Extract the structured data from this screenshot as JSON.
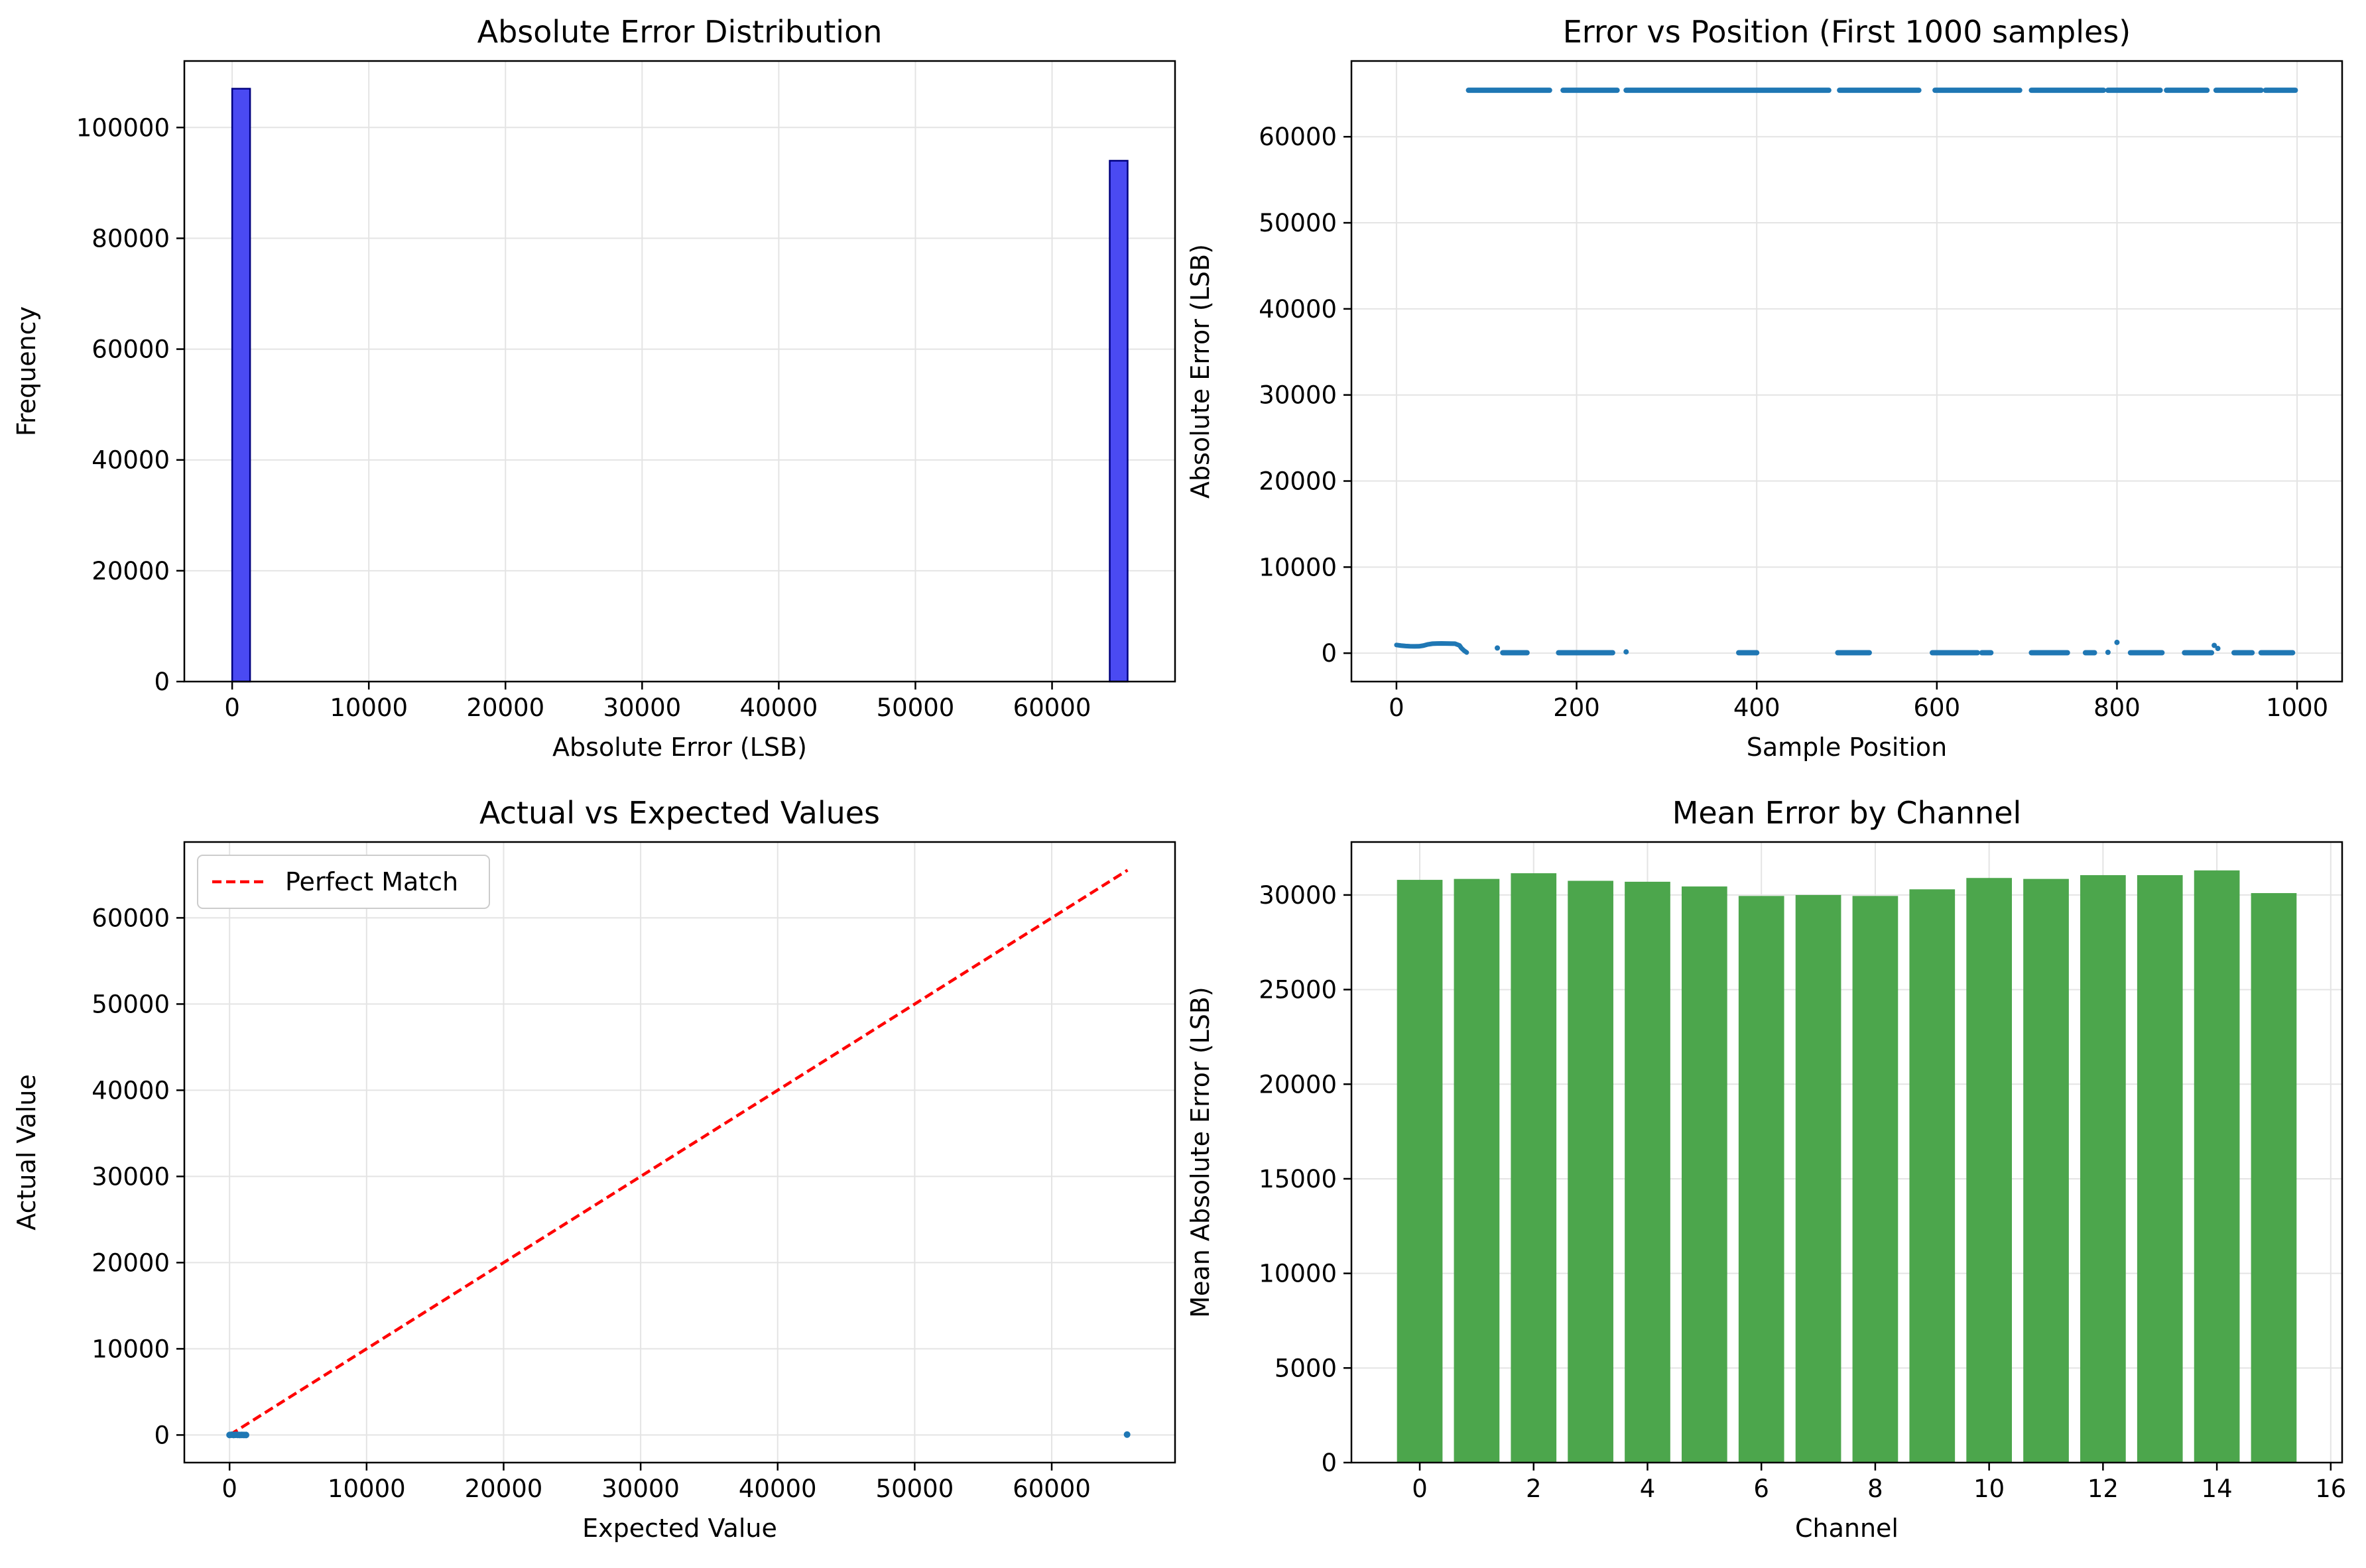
{
  "colors": {
    "hist_fill": "#4a4af2",
    "hist_edge": "#000080",
    "scatter": "#1f77b4",
    "perfect_line": "#ff0000",
    "channel_bar": "#4ca64c",
    "grid": "#e4e4e4"
  },
  "chart_data": [
    {
      "type": "bar",
      "subtype": "histogram",
      "title": "Absolute Error Distribution",
      "xlabel": "Absolute Error (LSB)",
      "ylabel": "Frequency",
      "xlim": [
        -3500,
        69000
      ],
      "ylim": [
        0,
        112000
      ],
      "xticks": [
        0,
        10000,
        20000,
        30000,
        40000,
        50000,
        60000
      ],
      "yticks": [
        0,
        20000,
        40000,
        60000,
        80000,
        100000
      ],
      "grid": true,
      "bins": [
        {
          "x0": 0,
          "x1": 1310,
          "count": 107000
        },
        {
          "x0": 64220,
          "x1": 65530,
          "count": 94000
        }
      ]
    },
    {
      "type": "scatter",
      "title": "Error vs Position (First 1000 samples)",
      "xlabel": "Sample Position",
      "ylabel": "Absolute Error (LSB)",
      "xlim": [
        -50,
        1050
      ],
      "ylim": [
        -3300,
        68800
      ],
      "xticks": [
        0,
        200,
        400,
        600,
        800,
        1000
      ],
      "yticks": [
        0,
        10000,
        20000,
        30000,
        40000,
        50000,
        60000
      ],
      "grid": true,
      "high_segments": [
        [
          80,
          170
        ],
        [
          185,
          245
        ],
        [
          255,
          480
        ],
        [
          492,
          580
        ],
        [
          598,
          692
        ],
        [
          705,
          785
        ],
        [
          790,
          848
        ],
        [
          855,
          900
        ],
        [
          910,
          960
        ],
        [
          965,
          998
        ]
      ],
      "high_value": 65400,
      "low_curve": [
        [
          0,
          950
        ],
        [
          5,
          880
        ],
        [
          10,
          830
        ],
        [
          15,
          800
        ],
        [
          20,
          790
        ],
        [
          25,
          800
        ],
        [
          30,
          880
        ],
        [
          35,
          1020
        ],
        [
          40,
          1100
        ],
        [
          45,
          1120
        ],
        [
          50,
          1130
        ],
        [
          55,
          1120
        ],
        [
          60,
          1110
        ],
        [
          65,
          1100
        ],
        [
          70,
          900
        ],
        [
          72,
          600
        ],
        [
          75,
          300
        ],
        [
          78,
          80
        ]
      ],
      "low_segments": [
        [
          118,
          145
        ],
        [
          180,
          240
        ],
        [
          380,
          400
        ],
        [
          490,
          525
        ],
        [
          595,
          645
        ],
        [
          650,
          660
        ],
        [
          705,
          745
        ],
        [
          765,
          775
        ],
        [
          815,
          850
        ],
        [
          875,
          905
        ],
        [
          930,
          950
        ],
        [
          960,
          995
        ]
      ],
      "low_value": 50,
      "outliers": [
        [
          112,
          600
        ],
        [
          255,
          150
        ],
        [
          800,
          1250
        ],
        [
          908,
          900
        ],
        [
          912,
          550
        ],
        [
          790,
          100
        ]
      ]
    },
    {
      "type": "scatter",
      "title": "Actual vs Expected Values",
      "xlabel": "Expected Value",
      "ylabel": "Actual Value",
      "xlim": [
        -3300,
        69000
      ],
      "ylim": [
        -3200,
        68800
      ],
      "xticks": [
        0,
        10000,
        20000,
        30000,
        40000,
        50000,
        60000
      ],
      "yticks": [
        0,
        10000,
        20000,
        30000,
        40000,
        50000,
        60000
      ],
      "grid": true,
      "legend": {
        "position": "upper-left",
        "label": "Perfect Match"
      },
      "reference_line": {
        "from": [
          0,
          0
        ],
        "to": [
          65535,
          65535
        ]
      },
      "points": [
        [
          0,
          0
        ],
        [
          150,
          30
        ],
        [
          300,
          0
        ],
        [
          450,
          20
        ],
        [
          600,
          10
        ],
        [
          750,
          0
        ],
        [
          900,
          15
        ],
        [
          1050,
          5
        ],
        [
          1200,
          0
        ],
        [
          65500,
          50
        ]
      ]
    },
    {
      "type": "bar",
      "title": "Mean Error by Channel",
      "xlabel": "Channel",
      "ylabel": "Mean Absolute Error (LSB)",
      "xlim": [
        -1.2,
        16.2
      ],
      "ylim": [
        0,
        32800
      ],
      "xticks": [
        0,
        2,
        4,
        6,
        8,
        10,
        12,
        14,
        16
      ],
      "yticks": [
        0,
        5000,
        10000,
        15000,
        20000,
        25000,
        30000
      ],
      "grid": true,
      "categories": [
        0,
        1,
        2,
        3,
        4,
        5,
        6,
        7,
        8,
        9,
        10,
        11,
        12,
        13,
        14,
        15
      ],
      "values": [
        30800,
        30850,
        31150,
        30750,
        30700,
        30450,
        29950,
        30000,
        29950,
        30300,
        30900,
        30850,
        31050,
        31050,
        31300,
        30100
      ]
    }
  ]
}
